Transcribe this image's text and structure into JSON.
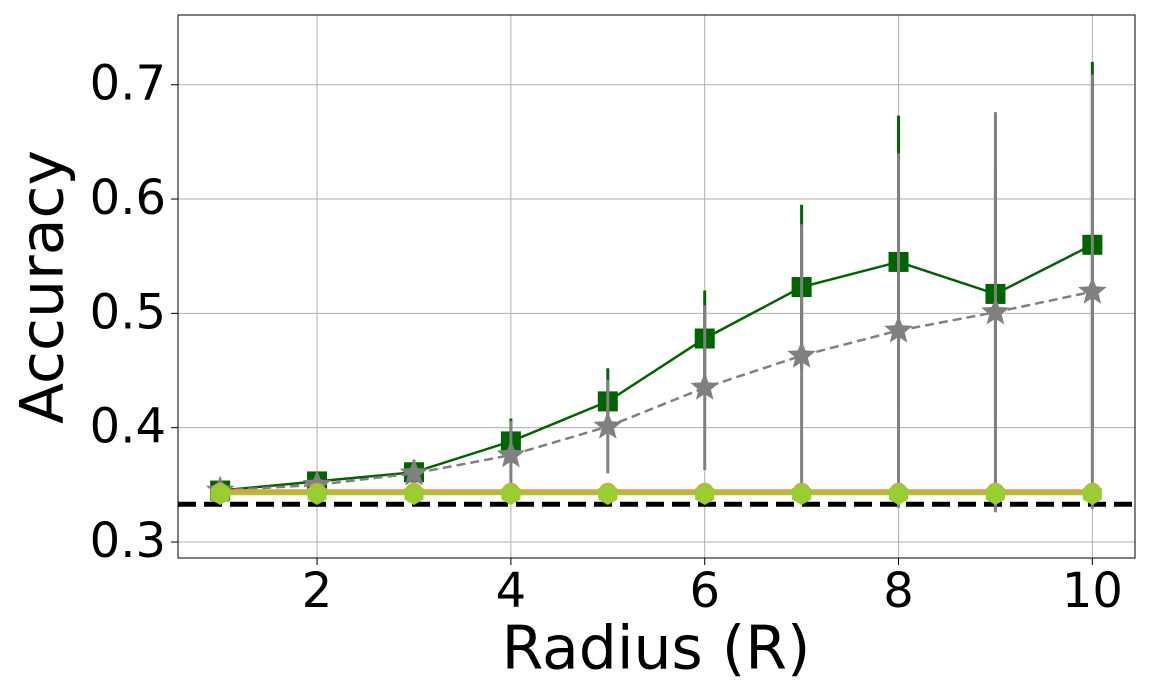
{
  "chart_data": {
    "type": "line",
    "x_label": "Radius (R)",
    "y_label": "Accuracy",
    "x": [
      1,
      2,
      3,
      4,
      5,
      6,
      7,
      8,
      9,
      10
    ],
    "xlim": [
      0.565,
      10.44
    ],
    "ylim": [
      0.286,
      0.761
    ],
    "xticks": [
      2,
      4,
      6,
      8,
      10
    ],
    "yticks": [
      0.3,
      0.4,
      0.5,
      0.6,
      0.7
    ],
    "grid": true,
    "hline": {
      "value": 0.333,
      "color": "#000000"
    },
    "series": [
      {
        "color": "#006400",
        "marker": "square",
        "linestyle": "solid",
        "values": [
          0.345,
          0.353,
          0.361,
          0.388,
          0.423,
          0.478,
          0.523,
          0.545,
          0.517,
          0.56
        ],
        "errors": [
          0.003,
          0.005,
          0.01,
          0.02,
          0.029,
          0.042,
          0.072,
          0.128,
          0.11,
          0.16
        ]
      },
      {
        "color": "#808080",
        "marker": "star",
        "linestyle": "dashed",
        "values": [
          0.345,
          0.35,
          0.36,
          0.376,
          0.401,
          0.435,
          0.463,
          0.485,
          0.501,
          0.519
        ],
        "errors": [
          0.003,
          0.006,
          0.012,
          0.03,
          0.041,
          0.072,
          0.115,
          0.155,
          0.175,
          0.19
        ]
      },
      {
        "color": "#d9a441",
        "marker": "circle",
        "linestyle": "solid",
        "values": [
          0.344,
          0.344,
          0.344,
          0.344,
          0.344,
          0.344,
          0.344,
          0.344,
          0.344,
          0.344
        ]
      },
      {
        "color": "#9acd32",
        "marker": "hexagon",
        "linestyle": "solid",
        "values": [
          0.342,
          0.342,
          0.342,
          0.342,
          0.342,
          0.342,
          0.342,
          0.342,
          0.342,
          0.342
        ]
      }
    ]
  }
}
